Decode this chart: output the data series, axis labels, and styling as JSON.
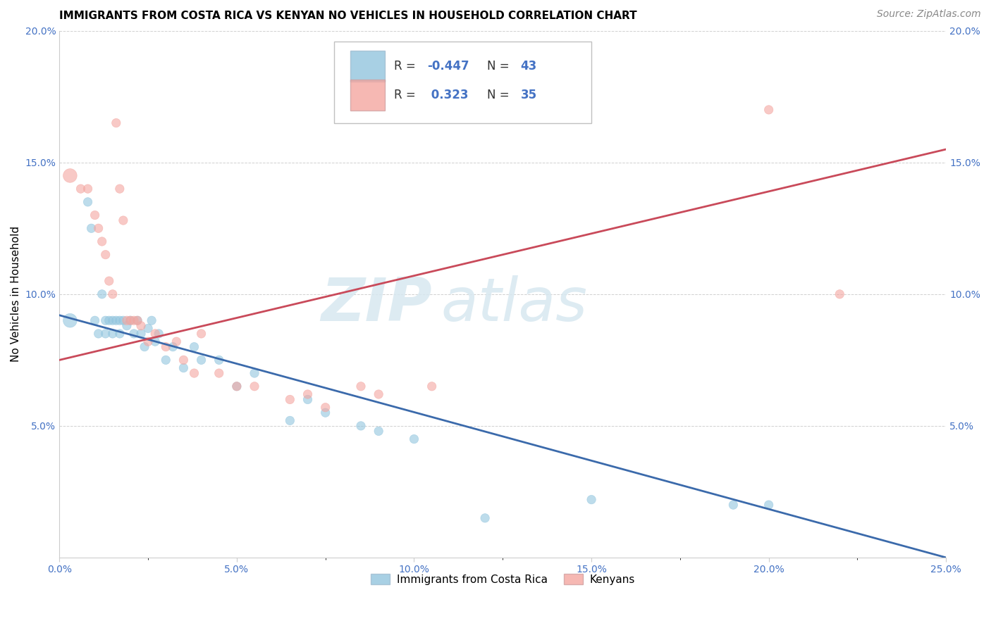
{
  "title": "IMMIGRANTS FROM COSTA RICA VS KENYAN NO VEHICLES IN HOUSEHOLD CORRELATION CHART",
  "source": "Source: ZipAtlas.com",
  "ylabel": "No Vehicles in Household",
  "xlim": [
    0.0,
    0.25
  ],
  "ylim": [
    0.0,
    0.2
  ],
  "xtick_labels": [
    "0.0%",
    "",
    "",
    "",
    "",
    "",
    "",
    "",
    "",
    "",
    "5.0%",
    "",
    "",
    "",
    "",
    "",
    "",
    "",
    "",
    "",
    "10.0%",
    "",
    "",
    "",
    "",
    "",
    "",
    "",
    "",
    "",
    "15.0%",
    "",
    "",
    "",
    "",
    "",
    "",
    "",
    "",
    "",
    "20.0%",
    "",
    "",
    "",
    "",
    "",
    "",
    "",
    "",
    "",
    "25.0%"
  ],
  "xtick_vals": [
    0.0,
    0.005,
    0.01,
    0.015,
    0.02,
    0.025,
    0.03,
    0.035,
    0.04,
    0.045,
    0.05,
    0.055,
    0.06,
    0.065,
    0.07,
    0.075,
    0.08,
    0.085,
    0.09,
    0.095,
    0.1,
    0.105,
    0.11,
    0.115,
    0.12,
    0.125,
    0.13,
    0.135,
    0.14,
    0.145,
    0.15,
    0.155,
    0.16,
    0.165,
    0.17,
    0.175,
    0.18,
    0.185,
    0.19,
    0.195,
    0.2,
    0.205,
    0.21,
    0.215,
    0.22,
    0.225,
    0.23,
    0.235,
    0.24,
    0.245,
    0.25
  ],
  "ytick_labels": [
    "",
    "5.0%",
    "10.0%",
    "15.0%",
    "20.0%"
  ],
  "ytick_vals": [
    0.0,
    0.05,
    0.1,
    0.15,
    0.2
  ],
  "blue_color": "#92c5de",
  "pink_color": "#f4a6a0",
  "blue_line_color": "#3b6aab",
  "pink_line_color": "#c94a5a",
  "legend_R_blue": "-0.447",
  "legend_N_blue": "43",
  "legend_R_pink": "0.323",
  "legend_N_pink": "35",
  "watermark_zip": "ZIP",
  "watermark_atlas": "atlas",
  "blue_scatter_x": [
    0.003,
    0.008,
    0.009,
    0.01,
    0.011,
    0.012,
    0.013,
    0.013,
    0.014,
    0.015,
    0.015,
    0.016,
    0.017,
    0.017,
    0.018,
    0.019,
    0.02,
    0.021,
    0.022,
    0.023,
    0.024,
    0.025,
    0.026,
    0.027,
    0.028,
    0.03,
    0.032,
    0.035,
    0.038,
    0.04,
    0.045,
    0.05,
    0.055,
    0.065,
    0.07,
    0.075,
    0.085,
    0.09,
    0.1,
    0.12,
    0.15,
    0.19,
    0.2
  ],
  "blue_scatter_y": [
    0.09,
    0.135,
    0.125,
    0.09,
    0.085,
    0.1,
    0.09,
    0.085,
    0.09,
    0.09,
    0.085,
    0.09,
    0.09,
    0.085,
    0.09,
    0.088,
    0.09,
    0.085,
    0.09,
    0.085,
    0.08,
    0.087,
    0.09,
    0.082,
    0.085,
    0.075,
    0.08,
    0.072,
    0.08,
    0.075,
    0.075,
    0.065,
    0.07,
    0.052,
    0.06,
    0.055,
    0.05,
    0.048,
    0.045,
    0.015,
    0.022,
    0.02,
    0.02
  ],
  "blue_scatter_size": [
    200,
    80,
    80,
    80,
    80,
    80,
    80,
    80,
    80,
    80,
    80,
    80,
    80,
    80,
    80,
    80,
    80,
    80,
    80,
    80,
    80,
    80,
    80,
    80,
    80,
    80,
    80,
    80,
    80,
    80,
    80,
    80,
    80,
    80,
    80,
    80,
    80,
    80,
    80,
    80,
    80,
    80,
    80
  ],
  "pink_scatter_x": [
    0.003,
    0.006,
    0.008,
    0.01,
    0.011,
    0.012,
    0.013,
    0.014,
    0.015,
    0.016,
    0.017,
    0.018,
    0.019,
    0.02,
    0.021,
    0.022,
    0.023,
    0.025,
    0.027,
    0.03,
    0.033,
    0.035,
    0.038,
    0.04,
    0.045,
    0.05,
    0.055,
    0.065,
    0.07,
    0.075,
    0.085,
    0.09,
    0.105,
    0.2,
    0.22
  ],
  "pink_scatter_y": [
    0.145,
    0.14,
    0.14,
    0.13,
    0.125,
    0.12,
    0.115,
    0.105,
    0.1,
    0.165,
    0.14,
    0.128,
    0.09,
    0.09,
    0.09,
    0.09,
    0.088,
    0.082,
    0.085,
    0.08,
    0.082,
    0.075,
    0.07,
    0.085,
    0.07,
    0.065,
    0.065,
    0.06,
    0.062,
    0.057,
    0.065,
    0.062,
    0.065,
    0.17,
    0.1
  ],
  "pink_scatter_size": [
    200,
    80,
    80,
    80,
    80,
    80,
    80,
    80,
    80,
    80,
    80,
    80,
    80,
    80,
    80,
    80,
    80,
    80,
    80,
    80,
    80,
    80,
    80,
    80,
    80,
    80,
    80,
    80,
    80,
    80,
    80,
    80,
    80,
    80,
    80
  ],
  "blue_line_x": [
    0.0,
    0.25
  ],
  "blue_line_y": [
    0.092,
    0.0
  ],
  "pink_line_x": [
    0.0,
    0.25
  ],
  "pink_line_y": [
    0.075,
    0.155
  ],
  "grid_color": "#d0d0d0",
  "background_color": "#ffffff",
  "title_fontsize": 11,
  "axis_label_fontsize": 11,
  "tick_fontsize": 10,
  "source_fontsize": 10
}
